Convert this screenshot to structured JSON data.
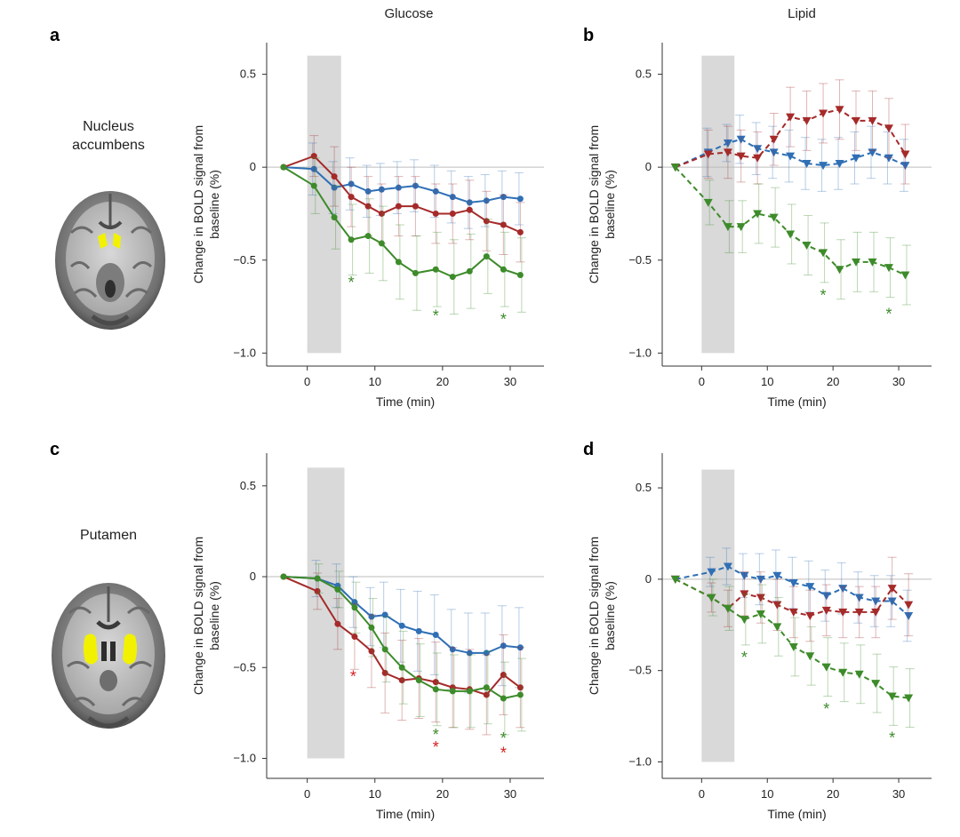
{
  "figure": {
    "column_titles": [
      "Glucose",
      "Lipid"
    ],
    "regions": [
      {
        "id": "nacc",
        "label_lines": [
          "Nucleus",
          "accumbens"
        ],
        "highlight_color": "#f2f200"
      },
      {
        "id": "putamen",
        "label_lines": [
          "Putamen"
        ],
        "highlight_color": "#f2f200"
      }
    ],
    "colors": {
      "blue": "#2f6fb5",
      "red": "#a52a2a",
      "green": "#3d8b2a",
      "infusion_band": "#d9d9d9",
      "asterisk_red": "#d62020"
    }
  },
  "chart_data": [
    {
      "panel": "a",
      "type": "line",
      "title": "Glucose",
      "region": "Nucleus accumbens",
      "xlabel": "Time (min)",
      "ylabel_lines": [
        "Change in BOLD signal from",
        "baseline (%)"
      ],
      "xlim": [
        -6,
        35
      ],
      "ylim": [
        -1.07,
        0.67
      ],
      "xticks": [
        0,
        10,
        20,
        30
      ],
      "xtick_labels": [
        "0",
        "10",
        "20",
        "30"
      ],
      "yticks": [
        0.5,
        0,
        -0.5,
        -1.0
      ],
      "ytick_labels": [
        "0.5",
        "0",
        "−0.5",
        "−1.0"
      ],
      "infusion_window": {
        "x": [
          0,
          5
        ],
        "y": [
          -1.0,
          0.6
        ]
      },
      "line_style": "solid",
      "marker": "circle",
      "series": [
        {
          "name": "blue",
          "color": "#2f6fb5",
          "x": [
            -3.5,
            1,
            4,
            6.5,
            9,
            11,
            13.5,
            16,
            19,
            21.5,
            24,
            26.5,
            29,
            31.5
          ],
          "y": [
            0,
            -0.01,
            -0.11,
            -0.09,
            -0.13,
            -0.12,
            -0.11,
            -0.1,
            -0.13,
            -0.16,
            -0.19,
            -0.18,
            -0.16,
            -0.17
          ],
          "err": [
            0,
            0.14,
            0.14,
            0.14,
            0.14,
            0.14,
            0.14,
            0.14,
            0.14,
            0.14,
            0.14,
            0.14,
            0.14,
            0.14
          ]
        },
        {
          "name": "red",
          "color": "#a52a2a",
          "x": [
            -3.5,
            1,
            4,
            6.5,
            9,
            11,
            13.5,
            16,
            19,
            21.5,
            24,
            26.5,
            29,
            31.5
          ],
          "y": [
            0,
            0.06,
            -0.05,
            -0.16,
            -0.21,
            -0.25,
            -0.21,
            -0.21,
            -0.25,
            -0.25,
            -0.23,
            -0.29,
            -0.31,
            -0.35
          ],
          "err": [
            0,
            0.11,
            0.16,
            0.16,
            0.16,
            0.16,
            0.16,
            0.16,
            0.16,
            0.16,
            0.16,
            0.16,
            0.16,
            0.16
          ]
        },
        {
          "name": "green",
          "color": "#3d8b2a",
          "x": [
            -3.5,
            1,
            4,
            6.5,
            9,
            11,
            13.5,
            16,
            19,
            21.5,
            24,
            26.5,
            29,
            31.5
          ],
          "y": [
            0,
            -0.1,
            -0.27,
            -0.39,
            -0.37,
            -0.41,
            -0.51,
            -0.57,
            -0.55,
            -0.59,
            -0.56,
            -0.48,
            -0.55,
            -0.58
          ],
          "err": [
            0,
            0.15,
            0.17,
            0.19,
            0.2,
            0.2,
            0.2,
            0.2,
            0.2,
            0.2,
            0.2,
            0.2,
            0.2,
            0.2
          ]
        }
      ],
      "asterisks": [
        {
          "x": 6.5,
          "y": -0.61,
          "color": "#3d8b2a",
          "text": "*"
        },
        {
          "x": 19,
          "y": -0.79,
          "color": "#3d8b2a",
          "text": "*"
        },
        {
          "x": 29,
          "y": -0.81,
          "color": "#3d8b2a",
          "text": "*"
        }
      ]
    },
    {
      "panel": "b",
      "type": "line",
      "title": "Lipid",
      "region": "Nucleus accumbens",
      "xlabel": "Time (min)",
      "ylabel_lines": [
        "Change in BOLD signal from",
        "baseline (%)"
      ],
      "xlim": [
        -6,
        35
      ],
      "ylim": [
        -1.07,
        0.67
      ],
      "xticks": [
        0,
        10,
        20,
        30
      ],
      "xtick_labels": [
        "0",
        "10",
        "20",
        "30"
      ],
      "yticks": [
        0.5,
        0,
        -0.5,
        -1.0
      ],
      "ytick_labels": [
        "0.5",
        "0",
        "−0.5",
        "−1.0"
      ],
      "infusion_window": {
        "x": [
          0,
          5
        ],
        "y": [
          -1.0,
          0.6
        ]
      },
      "line_style": "dashed",
      "marker": "triangle-down",
      "series": [
        {
          "name": "blue",
          "color": "#2f6fb5",
          "x": [
            -4,
            1,
            4,
            6,
            8.5,
            11,
            13.5,
            16,
            18.5,
            21,
            23.5,
            26,
            28.5,
            31
          ],
          "y": [
            0,
            0.08,
            0.13,
            0.15,
            0.1,
            0.08,
            0.06,
            0.02,
            0.01,
            0.02,
            0.05,
            0.08,
            0.05,
            0.01
          ],
          "err": [
            0,
            0.13,
            0.1,
            0.13,
            0.14,
            0.14,
            0.14,
            0.14,
            0.14,
            0.14,
            0.14,
            0.14,
            0.14,
            0.14
          ]
        },
        {
          "name": "red",
          "color": "#a52a2a",
          "x": [
            -4,
            1,
            4,
            6,
            8.5,
            11,
            13.5,
            16,
            18.5,
            21,
            23.5,
            26,
            28.5,
            31
          ],
          "y": [
            0,
            0.07,
            0.08,
            0.06,
            0.05,
            0.15,
            0.27,
            0.25,
            0.29,
            0.31,
            0.25,
            0.25,
            0.21,
            0.07
          ],
          "err": [
            0,
            0.13,
            0.14,
            0.14,
            0.14,
            0.14,
            0.16,
            0.16,
            0.16,
            0.16,
            0.16,
            0.16,
            0.16,
            0.16
          ]
        },
        {
          "name": "green",
          "color": "#3d8b2a",
          "x": [
            -4,
            1,
            4,
            6,
            8.5,
            11,
            13.5,
            16,
            18.5,
            21,
            23.5,
            26,
            28.5,
            31
          ],
          "y": [
            0,
            -0.19,
            -0.32,
            -0.32,
            -0.25,
            -0.27,
            -0.36,
            -0.42,
            -0.46,
            -0.55,
            -0.51,
            -0.51,
            -0.54,
            -0.58
          ],
          "err": [
            0,
            0.12,
            0.14,
            0.14,
            0.16,
            0.16,
            0.16,
            0.16,
            0.16,
            0.16,
            0.16,
            0.16,
            0.16,
            0.16
          ]
        }
      ],
      "asterisks": [
        {
          "x": 18.5,
          "y": -0.68,
          "color": "#3d8b2a",
          "text": "*"
        },
        {
          "x": 28.5,
          "y": -0.78,
          "color": "#3d8b2a",
          "text": "*"
        }
      ]
    },
    {
      "panel": "c",
      "type": "line",
      "title": "Glucose",
      "region": "Putamen",
      "xlabel": "Time (min)",
      "ylabel_lines": [
        "Change in BOLD signal from",
        "baseline (%)"
      ],
      "xlim": [
        -6,
        35
      ],
      "ylim": [
        -1.11,
        0.68
      ],
      "xticks": [
        0,
        10,
        20,
        30
      ],
      "xtick_labels": [
        "0",
        "10",
        "20",
        "30"
      ],
      "yticks": [
        0.5,
        0,
        -0.5,
        -1.0
      ],
      "ytick_labels": [
        "0.5",
        "0",
        "−0.5",
        "−1.0"
      ],
      "infusion_window": {
        "x": [
          0,
          5.5
        ],
        "y": [
          -1.0,
          0.6
        ]
      },
      "line_style": "solid",
      "marker": "circle",
      "series": [
        {
          "name": "blue",
          "color": "#2f6fb5",
          "x": [
            -3.5,
            1.5,
            4.5,
            7,
            9.5,
            11.5,
            14,
            16.5,
            19,
            21.5,
            24,
            26.5,
            29,
            31.5
          ],
          "y": [
            0,
            -0.01,
            -0.05,
            -0.14,
            -0.22,
            -0.21,
            -0.27,
            -0.3,
            -0.32,
            -0.4,
            -0.42,
            -0.42,
            -0.38,
            -0.39
          ],
          "err": [
            0,
            0.1,
            0.12,
            0.14,
            0.16,
            0.18,
            0.2,
            0.22,
            0.22,
            0.22,
            0.22,
            0.22,
            0.22,
            0.22
          ]
        },
        {
          "name": "red",
          "color": "#a52a2a",
          "x": [
            -3.5,
            1.5,
            4.5,
            7,
            9.5,
            11.5,
            14,
            16.5,
            19,
            21.5,
            24,
            26.5,
            29,
            31.5
          ],
          "y": [
            0,
            -0.08,
            -0.26,
            -0.33,
            -0.41,
            -0.53,
            -0.57,
            -0.56,
            -0.58,
            -0.61,
            -0.62,
            -0.65,
            -0.54,
            -0.61
          ],
          "err": [
            0,
            0.1,
            0.14,
            0.18,
            0.2,
            0.22,
            0.22,
            0.22,
            0.22,
            0.22,
            0.22,
            0.22,
            0.22,
            0.22
          ]
        },
        {
          "name": "green",
          "color": "#3d8b2a",
          "x": [
            -3.5,
            1.5,
            4.5,
            7,
            9.5,
            11.5,
            14,
            16.5,
            19,
            21.5,
            24,
            26.5,
            29,
            31.5
          ],
          "y": [
            0,
            -0.01,
            -0.07,
            -0.17,
            -0.28,
            -0.4,
            -0.5,
            -0.57,
            -0.62,
            -0.63,
            -0.63,
            -0.61,
            -0.67,
            -0.65
          ],
          "err": [
            0,
            0.08,
            0.1,
            0.14,
            0.16,
            0.18,
            0.2,
            0.2,
            0.2,
            0.2,
            0.2,
            0.2,
            0.2,
            0.2
          ]
        }
      ],
      "asterisks": [
        {
          "x": 6.8,
          "y": -0.54,
          "color": "#d62020",
          "text": "*"
        },
        {
          "x": 19,
          "y": -0.86,
          "color": "#3d8b2a",
          "text": "*"
        },
        {
          "x": 19,
          "y": -0.93,
          "color": "#d62020",
          "text": "*"
        },
        {
          "x": 29,
          "y": -0.88,
          "color": "#3d8b2a",
          "text": "*"
        },
        {
          "x": 29,
          "y": -0.96,
          "color": "#d62020",
          "text": "*"
        }
      ]
    },
    {
      "panel": "d",
      "type": "line",
      "title": "Lipid",
      "region": "Putamen",
      "xlabel": "Time (min)",
      "ylabel_lines": [
        "Change in BOLD signal from",
        "baseline (%)"
      ],
      "xlim": [
        -6,
        35
      ],
      "ylim": [
        -1.09,
        0.69
      ],
      "xticks": [
        0,
        10,
        20,
        30
      ],
      "xtick_labels": [
        "0",
        "10",
        "20",
        "30"
      ],
      "yticks": [
        0.5,
        0,
        -0.5,
        -1.0
      ],
      "ytick_labels": [
        "0.5",
        "0",
        "−0.5",
        "−1.0"
      ],
      "infusion_window": {
        "x": [
          0,
          5
        ],
        "y": [
          -1.0,
          0.6
        ]
      },
      "line_style": "dashed",
      "marker": "triangle-down",
      "series": [
        {
          "name": "blue",
          "color": "#2f6fb5",
          "x": [
            -4,
            1.5,
            4,
            6.5,
            9,
            11.5,
            14,
            16.5,
            19,
            21.5,
            24,
            26.5,
            29,
            31.5
          ],
          "y": [
            0,
            0.04,
            0.07,
            0.02,
            0,
            0.02,
            -0.02,
            -0.04,
            -0.09,
            -0.05,
            -0.1,
            -0.12,
            -0.12,
            -0.2
          ],
          "err": [
            0,
            0.08,
            0.1,
            0.12,
            0.14,
            0.14,
            0.14,
            0.14,
            0.14,
            0.14,
            0.14,
            0.14,
            0.14,
            0.14
          ]
        },
        {
          "name": "red",
          "color": "#a52a2a",
          "x": [
            -4,
            1.5,
            4,
            6.5,
            9,
            11.5,
            14,
            16.5,
            19,
            21.5,
            24,
            26.5,
            29,
            31.5
          ],
          "y": [
            0,
            -0.1,
            -0.16,
            -0.08,
            -0.1,
            -0.14,
            -0.18,
            -0.2,
            -0.17,
            -0.18,
            -0.18,
            -0.18,
            -0.05,
            -0.14
          ],
          "err": [
            0,
            0.08,
            0.1,
            0.12,
            0.14,
            0.14,
            0.14,
            0.14,
            0.14,
            0.14,
            0.14,
            0.14,
            0.17,
            0.17
          ]
        },
        {
          "name": "green",
          "color": "#3d8b2a",
          "x": [
            -4,
            1.5,
            4,
            6.5,
            9,
            11.5,
            14,
            16.5,
            19,
            21.5,
            24,
            26.5,
            29,
            31.5
          ],
          "y": [
            0,
            -0.1,
            -0.16,
            -0.22,
            -0.19,
            -0.26,
            -0.37,
            -0.42,
            -0.48,
            -0.51,
            -0.52,
            -0.57,
            -0.64,
            -0.65
          ],
          "err": [
            0,
            0.1,
            0.12,
            0.14,
            0.16,
            0.16,
            0.16,
            0.16,
            0.16,
            0.16,
            0.16,
            0.16,
            0.16,
            0.16
          ]
        }
      ],
      "asterisks": [
        {
          "x": 6.5,
          "y": -0.42,
          "color": "#3d8b2a",
          "text": "*"
        },
        {
          "x": 19,
          "y": -0.7,
          "color": "#3d8b2a",
          "text": "*"
        },
        {
          "x": 29,
          "y": -0.86,
          "color": "#3d8b2a",
          "text": "*"
        }
      ]
    }
  ]
}
